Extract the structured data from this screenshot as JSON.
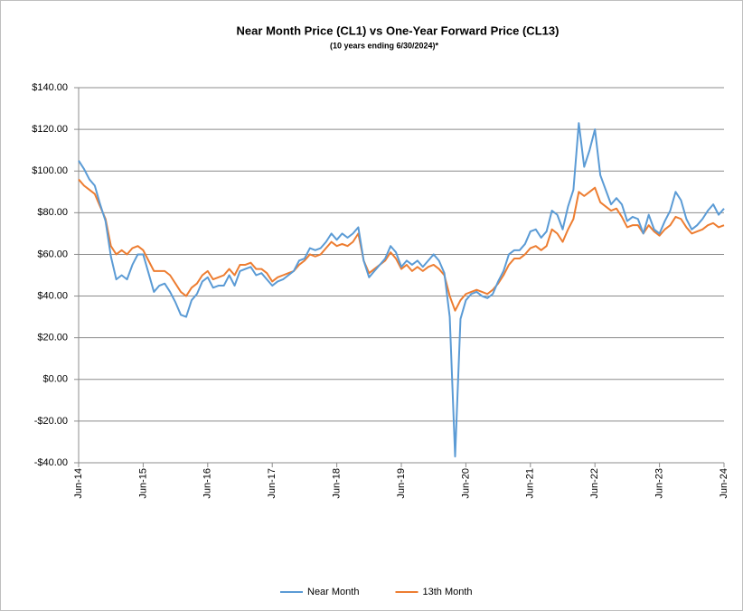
{
  "chart_data": {
    "type": "line",
    "title": "Near Month Price (CL1) vs One-Year Forward Price (CL13)",
    "subtitle": "(10 years ending  6/30/2024)*",
    "categories": [
      "Jun-14",
      null,
      null,
      null,
      null,
      null,
      null,
      null,
      null,
      null,
      null,
      null,
      "Jun-15",
      null,
      null,
      null,
      null,
      null,
      null,
      null,
      null,
      null,
      null,
      null,
      "Jun-16",
      null,
      null,
      null,
      null,
      null,
      null,
      null,
      null,
      null,
      null,
      null,
      "Jun-17",
      null,
      null,
      null,
      null,
      null,
      null,
      null,
      null,
      null,
      null,
      null,
      "Jun-18",
      null,
      null,
      null,
      null,
      null,
      null,
      null,
      null,
      null,
      null,
      null,
      "Jun-19",
      null,
      null,
      null,
      null,
      null,
      null,
      null,
      null,
      null,
      null,
      null,
      "Jun-20",
      null,
      null,
      null,
      null,
      null,
      null,
      null,
      null,
      null,
      null,
      null,
      "Jun-21",
      null,
      null,
      null,
      null,
      null,
      null,
      null,
      null,
      null,
      null,
      null,
      "Jun-22",
      null,
      null,
      null,
      null,
      null,
      null,
      null,
      null,
      null,
      null,
      null,
      "Jun-23",
      null,
      null,
      null,
      null,
      null,
      null,
      null,
      null,
      null,
      null,
      null,
      "Jun-24"
    ],
    "series": [
      {
        "name": "Near Month",
        "color": "#5b9bd5",
        "values": [
          105,
          101,
          96,
          93,
          84,
          76,
          59,
          48,
          50,
          48,
          55,
          60,
          60,
          51,
          42,
          45,
          46,
          42,
          37,
          31,
          30,
          38,
          41,
          47,
          49,
          44,
          45,
          45,
          50,
          45,
          52,
          53,
          54,
          50,
          51,
          48,
          45,
          47,
          48,
          50,
          52,
          57,
          58,
          63,
          62,
          63,
          66,
          70,
          67,
          70,
          68,
          70,
          73,
          57,
          49,
          52,
          55,
          58,
          64,
          61,
          54,
          57,
          55,
          57,
          54,
          57,
          60,
          57,
          51,
          30,
          -37,
          29,
          38,
          41,
          42,
          40,
          39,
          41,
          47,
          52,
          60,
          62,
          62,
          65,
          71,
          72,
          68,
          71,
          81,
          79,
          72,
          83,
          91,
          123,
          102,
          110,
          120,
          98,
          91,
          84,
          87,
          84,
          76,
          78,
          77,
          70,
          79,
          72,
          70,
          76,
          81,
          90,
          86,
          77,
          72,
          74,
          77,
          81,
          84,
          79,
          82
        ]
      },
      {
        "name": "13th Month",
        "color": "#ed7d31",
        "values": [
          96,
          93,
          91,
          89,
          83,
          77,
          64,
          60,
          62,
          60,
          63,
          64,
          62,
          57,
          52,
          52,
          52,
          50,
          46,
          42,
          40,
          44,
          46,
          50,
          52,
          48,
          49,
          50,
          53,
          50,
          55,
          55,
          56,
          53,
          53,
          51,
          47,
          49,
          50,
          51,
          52,
          55,
          57,
          60,
          59,
          60,
          63,
          66,
          64,
          65,
          64,
          66,
          70,
          57,
          51,
          53,
          55,
          57,
          61,
          58,
          53,
          55,
          52,
          54,
          52,
          54,
          55,
          53,
          50,
          40,
          33,
          38,
          41,
          42,
          43,
          42,
          41,
          43,
          46,
          50,
          55,
          58,
          58,
          60,
          63,
          64,
          62,
          64,
          72,
          70,
          66,
          72,
          77,
          90,
          88,
          90,
          92,
          85,
          83,
          81,
          82,
          78,
          73,
          74,
          74,
          70,
          74,
          71,
          69,
          72,
          74,
          78,
          77,
          73,
          70,
          71,
          72,
          74,
          75,
          73,
          74
        ]
      }
    ],
    "ylim": [
      -40,
      140
    ],
    "yticks": [
      {
        "value": -40,
        "label": "-$40.00"
      },
      {
        "value": -20,
        "label": "-$20.00"
      },
      {
        "value": 0,
        "label": "$0.00"
      },
      {
        "value": 20,
        "label": "$20.00"
      },
      {
        "value": 40,
        "label": "$40.00"
      },
      {
        "value": 60,
        "label": "$60.00"
      },
      {
        "value": 80,
        "label": "$80.00"
      },
      {
        "value": 100,
        "label": "$100.00"
      },
      {
        "value": 120,
        "label": "$120.00"
      },
      {
        "value": 140,
        "label": "$140.00"
      }
    ],
    "grid": true,
    "legend": "bottom"
  }
}
